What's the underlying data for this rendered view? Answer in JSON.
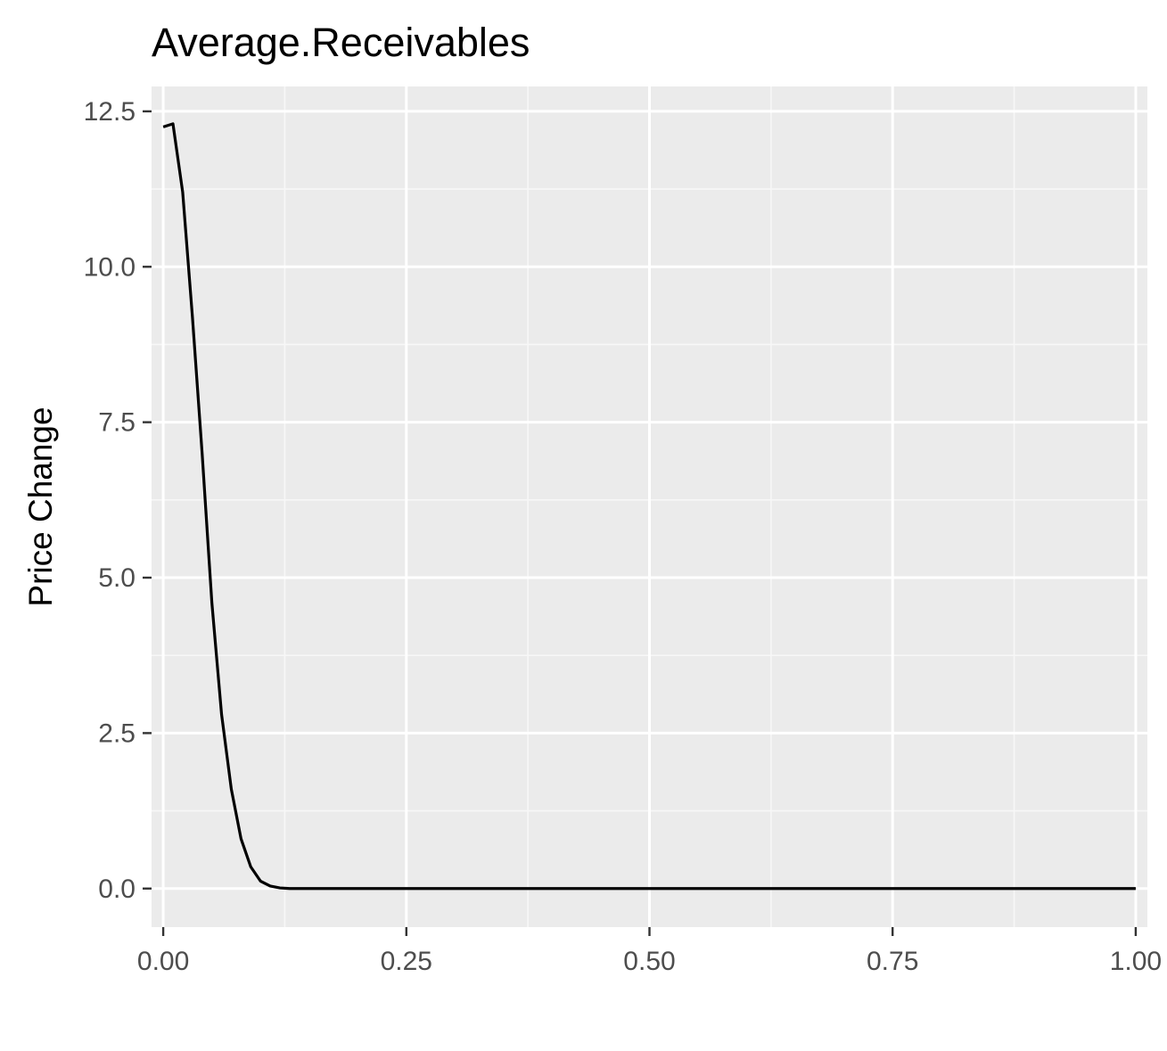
{
  "chart_data": {
    "type": "line",
    "title": "Average.Receivables",
    "xlabel": "",
    "ylabel": "Price Change",
    "xlim": [
      -0.012,
      1.012
    ],
    "ylim": [
      -0.62,
      12.9
    ],
    "x_ticks": [
      0.0,
      0.25,
      0.5,
      0.75,
      1.0
    ],
    "x_tick_labels": [
      "0.00",
      "0.25",
      "0.50",
      "0.75",
      "1.00"
    ],
    "y_ticks": [
      0.0,
      2.5,
      5.0,
      7.5,
      10.0,
      12.5
    ],
    "y_tick_labels": [
      "0.0",
      "2.5",
      "5.0",
      "7.5",
      "10.0",
      "12.5"
    ],
    "grid": true,
    "series": [
      {
        "line_color": "#000000",
        "x": [
          0.0,
          0.01,
          0.02,
          0.03,
          0.04,
          0.05,
          0.06,
          0.07,
          0.08,
          0.09,
          0.1,
          0.11,
          0.12,
          0.13,
          0.14,
          0.2,
          0.3,
          0.4,
          0.5,
          0.6,
          0.7,
          0.8,
          0.9,
          1.0
        ],
        "y": [
          12.25,
          12.3,
          11.2,
          9.2,
          7.0,
          4.6,
          2.8,
          1.6,
          0.8,
          0.35,
          0.12,
          0.04,
          0.01,
          0.0,
          0.0,
          0.0,
          0.0,
          0.0,
          0.0,
          0.0,
          0.0,
          0.0,
          0.0,
          0.0
        ]
      }
    ]
  },
  "colors": {
    "panel_background": "#ebebeb",
    "grid_major": "#ffffff",
    "grid_minor": "#f7f7f7",
    "tick_text": "#4d4d4d",
    "tick_mark": "#333333",
    "title_text": "#000000",
    "axis_title_text": "#000000"
  }
}
